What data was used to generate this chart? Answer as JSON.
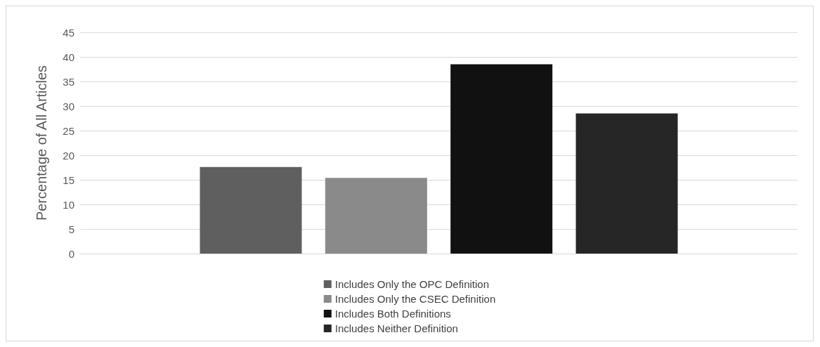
{
  "chart_data": {
    "type": "bar",
    "ylabel": "Percentage of All Articles",
    "categories": [
      null
    ],
    "series": [
      {
        "name": "Includes Only the OPC Definition",
        "color": "#5f5f5f",
        "values": [
          17.6
        ]
      },
      {
        "name": "Includes Only the CSEC Definition",
        "color": "#8a8a8a",
        "values": [
          15.4
        ]
      },
      {
        "name": "Includes Both Definitions",
        "color": "#111111",
        "values": [
          38.5
        ]
      },
      {
        "name": "Includes Neither Definition",
        "color": "#262626",
        "values": [
          28.5
        ]
      }
    ],
    "ylim": [
      0,
      45
    ],
    "yticks": [
      0,
      5,
      10,
      15,
      20,
      25,
      30,
      35,
      40,
      45
    ],
    "grid": "y",
    "legend": "bottom"
  }
}
